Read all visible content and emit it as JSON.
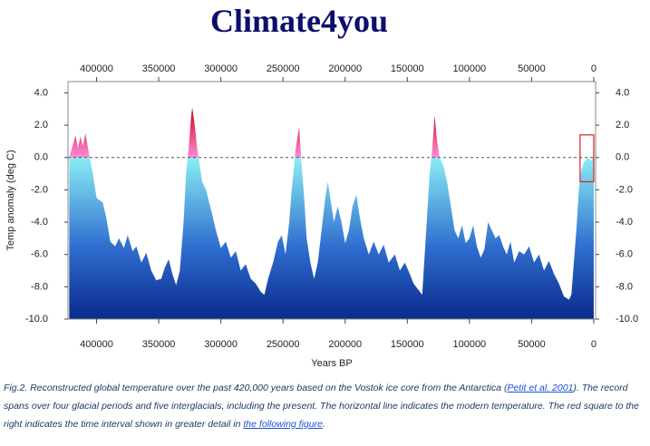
{
  "header": "Climate4you",
  "chart_data": {
    "type": "area",
    "xlabel": "Years BP",
    "ylabel": "Temp anomaly (deg C)",
    "xlim": [
      423000,
      -1500
    ],
    "ylim": [
      -10,
      4.7
    ],
    "xticks": [
      400000,
      350000,
      300000,
      250000,
      200000,
      150000,
      100000,
      50000,
      0
    ],
    "yticks": [
      {
        "value": 4,
        "label": "4.0"
      },
      {
        "value": 2,
        "label": "2.0"
      },
      {
        "value": 0,
        "label": "0.0"
      },
      {
        "value": -2,
        "label": "-2.0"
      },
      {
        "value": -4,
        "label": "-4.0"
      },
      {
        "value": -6,
        "label": "-6.0"
      },
      {
        "value": -8,
        "label": "-8.0"
      },
      {
        "value": -10,
        "label": "-10.0"
      }
    ],
    "reference_line": 0,
    "highlight_box": {
      "x": [
        11000,
        0
      ],
      "y": [
        1.4,
        -1.5
      ],
      "color": "#d62020"
    },
    "colors": {
      "low": "#0a2a8c",
      "mid": "#2f6fd0",
      "zero": "#8aeef5",
      "warm": "#ff8ad8",
      "peak": "#d0102a"
    },
    "x": [
      422000,
      419000,
      417000,
      415000,
      413000,
      411000,
      409000,
      406000,
      403000,
      400000,
      395000,
      392000,
      389000,
      385000,
      382000,
      378000,
      375000,
      371000,
      368000,
      364000,
      360000,
      356000,
      352000,
      348000,
      345000,
      342000,
      339000,
      336000,
      333000,
      330000,
      328000,
      326000,
      324000,
      323000,
      321000,
      319000,
      317000,
      315000,
      312000,
      308000,
      304000,
      300000,
      296000,
      292000,
      288000,
      284000,
      280000,
      276000,
      272000,
      268000,
      265000,
      262000,
      258000,
      254000,
      251000,
      248000,
      245000,
      243000,
      241000,
      240000,
      237000,
      235000,
      233000,
      231000,
      228000,
      225000,
      222000,
      219000,
      216000,
      214000,
      212000,
      209000,
      206000,
      203000,
      200000,
      197000,
      194000,
      191000,
      188000,
      185000,
      181000,
      177000,
      173000,
      169000,
      165000,
      160000,
      156000,
      152000,
      148000,
      145000,
      141000,
      138000,
      136000,
      134000,
      132000,
      130000,
      128000,
      126000,
      124000,
      121000,
      118000,
      115000,
      112000,
      109000,
      106000,
      103000,
      100000,
      97000,
      94000,
      91000,
      88000,
      85000,
      82000,
      79000,
      76000,
      73000,
      70000,
      67000,
      64000,
      60000,
      56000,
      52000,
      48000,
      44000,
      40000,
      36000,
      32000,
      28000,
      24000,
      20000,
      18000,
      16000,
      14000,
      12000,
      10000,
      8000,
      5000,
      2000,
      0
    ],
    "values": [
      0.0,
      0.8,
      1.4,
      0.6,
      1.3,
      0.7,
      1.5,
      0.2,
      -1.0,
      -2.5,
      -2.8,
      -3.8,
      -5.2,
      -5.5,
      -5.0,
      -5.6,
      -4.8,
      -5.8,
      -5.5,
      -6.5,
      -5.9,
      -7.0,
      -7.6,
      -7.5,
      -6.8,
      -6.3,
      -7.2,
      -7.9,
      -7.0,
      -4.0,
      -1.0,
      0.5,
      2.5,
      3.1,
      2.0,
      0.5,
      -0.5,
      -1.5,
      -2.0,
      -3.2,
      -4.5,
      -5.6,
      -5.2,
      -6.2,
      -5.8,
      -7.0,
      -6.6,
      -7.5,
      -7.8,
      -8.3,
      -8.5,
      -7.5,
      -6.5,
      -5.2,
      -4.8,
      -6.0,
      -4.0,
      -2.0,
      -0.5,
      0.5,
      1.9,
      -0.5,
      -2.5,
      -5.0,
      -6.5,
      -7.5,
      -6.5,
      -4.5,
      -2.5,
      -1.5,
      -2.5,
      -4.0,
      -3.0,
      -4.0,
      -5.3,
      -4.5,
      -3.0,
      -2.3,
      -3.8,
      -5.0,
      -6.0,
      -5.2,
      -6.0,
      -5.4,
      -6.5,
      -6.0,
      -7.0,
      -6.5,
      -7.2,
      -7.8,
      -8.2,
      -8.5,
      -6.0,
      -3.5,
      -1.0,
      0.5,
      2.6,
      1.0,
      0.0,
      -0.5,
      -1.5,
      -3.0,
      -4.5,
      -5.0,
      -4.2,
      -5.3,
      -5.0,
      -4.2,
      -5.5,
      -6.2,
      -5.7,
      -4.0,
      -4.5,
      -5.0,
      -4.8,
      -5.5,
      -6.0,
      -5.2,
      -6.5,
      -5.8,
      -6.0,
      -5.5,
      -6.5,
      -6.0,
      -7.0,
      -6.4,
      -7.2,
      -7.8,
      -8.6,
      -8.8,
      -8.5,
      -6.5,
      -4.5,
      -2.0,
      -0.8,
      -0.3,
      0.0,
      -0.2,
      0.1
    ]
  },
  "caption": {
    "text1": "Fig.2. Reconstructed global temperature over the past 420,000 years based on the Vostok ice core from the Antarctica (",
    "link1": "Petit et al. 2001",
    "text2": "). The record spans over four glacial periods and five interglacials, including the present. The horizontal line indicates the modern temperature. The red square to the right indicates the time interval shown in greater detail in ",
    "link2": "the following figure",
    "text3": "."
  }
}
